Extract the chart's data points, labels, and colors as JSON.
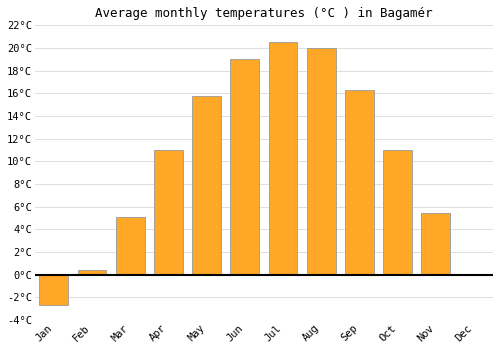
{
  "title": "Average monthly temperatures (°C ) in Bagamér",
  "months": [
    "Jan",
    "Feb",
    "Mar",
    "Apr",
    "May",
    "Jun",
    "Jul",
    "Aug",
    "Sep",
    "Oct",
    "Nov",
    "Dec"
  ],
  "values": [
    -2.7,
    0.4,
    5.1,
    11.0,
    15.8,
    19.0,
    20.5,
    20.0,
    16.3,
    11.0,
    5.4,
    0.0
  ],
  "bar_color": "#FFA726",
  "bar_edge_color": "#999999",
  "ylim": [
    -4,
    22
  ],
  "yticks": [
    -4,
    -2,
    0,
    2,
    4,
    6,
    8,
    10,
    12,
    14,
    16,
    18,
    20,
    22
  ],
  "ytick_labels": [
    "-4°C",
    "-2°C",
    "0°C",
    "2°C",
    "4°C",
    "6°C",
    "8°C",
    "10°C",
    "12°C",
    "14°C",
    "16°C",
    "18°C",
    "20°C",
    "22°C"
  ],
  "grid_color": "#dddddd",
  "background_color": "#ffffff",
  "title_fontsize": 9,
  "tick_fontsize": 7.5,
  "bar_width": 0.75
}
